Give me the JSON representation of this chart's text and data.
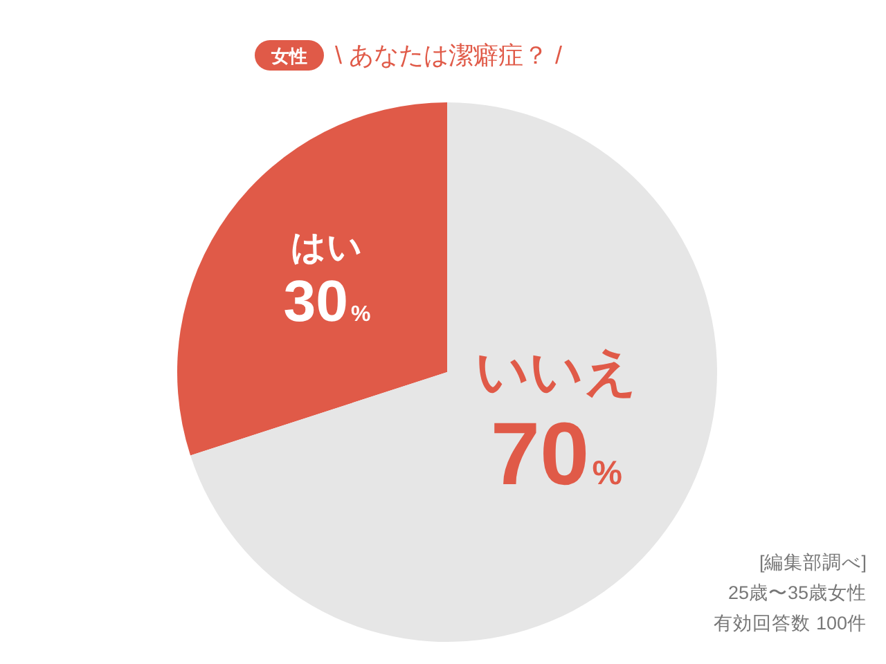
{
  "chart_data": {
    "type": "pie",
    "title": "\\ あなたは潔癖症？ /",
    "subtitle": "女性",
    "categories": [
      "はい",
      "いいえ"
    ],
    "values": [
      30,
      70
    ],
    "colors": [
      "#e05a48",
      "#e6e6e6"
    ],
    "value_labels": [
      "30%",
      "70%"
    ],
    "annotations": [
      "[編集部調べ]",
      "25歳〜35歳女性",
      "有効回答数 100件"
    ]
  }
}
